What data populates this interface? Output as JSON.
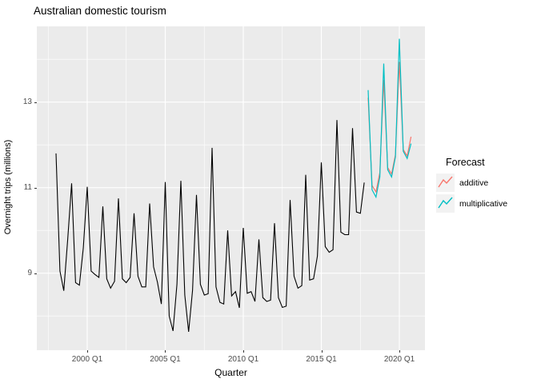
{
  "title": "Australian domestic tourism",
  "axes": {
    "x_label": "Quarter",
    "y_label": "Overnight trips (millions)"
  },
  "legend": {
    "title": "Forecast",
    "items": [
      {
        "label": "additive",
        "color": "#F8766D"
      },
      {
        "label": "multiplicative",
        "color": "#00BFC4"
      }
    ]
  },
  "colors": {
    "panel_background": "#EBEBEB",
    "gridline": "#FFFFFF",
    "tick_text": "#4D4D4D",
    "data_line": "#000000",
    "additive_line": "#F8766D",
    "multiplicative_line": "#00BFC4"
  },
  "chart_data": {
    "type": "line",
    "title": "Australian domestic tourism",
    "xlabel": "Quarter",
    "ylabel": "Overnight trips (millions)",
    "grid": true,
    "legend_position": "right",
    "legend_title": "Forecast",
    "x_domain": [
      1996.77,
      2021.64
    ],
    "y_domain": [
      7.2,
      14.77
    ],
    "x_ticks": [
      {
        "value": 2000,
        "label": "2000 Q1"
      },
      {
        "value": 2005,
        "label": "2005 Q1"
      },
      {
        "value": 2010,
        "label": "2010 Q1"
      },
      {
        "value": 2015,
        "label": "2015 Q1"
      },
      {
        "value": 2020,
        "label": "2020 Q1"
      }
    ],
    "y_ticks": [
      {
        "value": 9,
        "label": "9"
      },
      {
        "value": 11,
        "label": "11"
      },
      {
        "value": 13,
        "label": "13"
      }
    ],
    "x_minor": [
      1997.5,
      2002.5,
      2007.5,
      2012.5,
      2017.5
    ],
    "y_minor": [
      8,
      10,
      12,
      14
    ],
    "series": [
      {
        "name": "observed data (overnight trips, millions)",
        "color": "#000000",
        "width": 1.1,
        "start": 1998.0,
        "step": 0.25,
        "values": [
          11.8,
          9.05,
          8.59,
          9.79,
          11.1,
          8.78,
          8.72,
          9.59,
          11.02,
          9.05,
          8.97,
          8.9,
          10.56,
          8.87,
          8.65,
          8.81,
          10.75,
          8.87,
          8.78,
          8.9,
          10.4,
          8.93,
          8.68,
          8.68,
          10.63,
          9.15,
          8.79,
          8.28,
          11.13,
          8.0,
          7.65,
          8.74,
          11.16,
          8.49,
          7.63,
          8.6,
          10.83,
          8.74,
          8.49,
          8.52,
          11.93,
          8.68,
          8.32,
          8.28,
          10.0,
          8.47,
          8.57,
          8.19,
          10.06,
          8.53,
          8.57,
          8.34,
          9.79,
          8.43,
          8.34,
          8.37,
          10.17,
          8.43,
          8.2,
          8.23,
          10.71,
          8.93,
          8.65,
          8.71,
          11.3,
          8.84,
          8.87,
          9.4,
          11.59,
          9.62,
          9.49,
          9.55,
          12.58,
          9.96,
          9.9,
          9.9,
          12.39,
          10.43,
          10.4,
          11.12
        ]
      },
      {
        "name": "additive forecast",
        "color": "#F8766D",
        "width": 1.2,
        "start": 2018.0,
        "step": 0.25,
        "values": [
          13.1,
          11.05,
          10.9,
          11.35,
          13.52,
          11.47,
          11.32,
          11.77,
          13.94,
          11.89,
          11.74,
          12.19
        ]
      },
      {
        "name": "multiplicative forecast",
        "color": "#00BFC4",
        "width": 1.2,
        "start": 2018.0,
        "step": 0.25,
        "values": [
          13.28,
          10.95,
          10.78,
          11.25,
          13.9,
          11.42,
          11.25,
          11.72,
          14.48,
          11.85,
          11.68,
          12.03
        ]
      }
    ]
  }
}
